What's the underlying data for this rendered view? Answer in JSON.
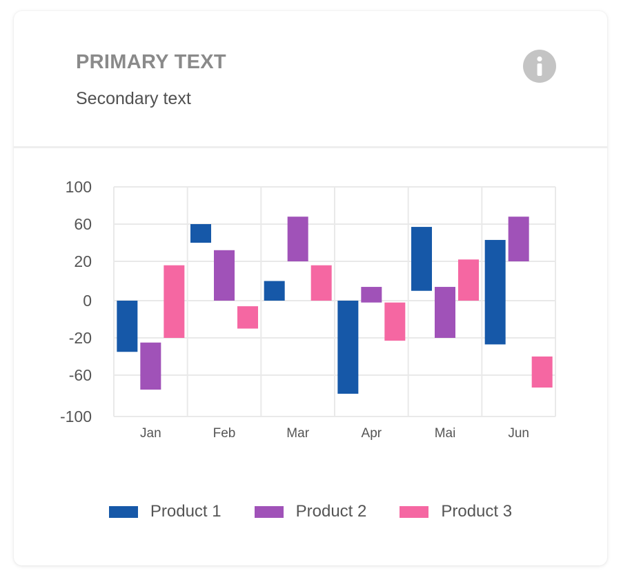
{
  "card": {
    "title": "PRIMARY TEXT",
    "subtitle": "Secondary text",
    "info_icon": "info-icon"
  },
  "chart_data": {
    "type": "bar",
    "subtype": "floating-range",
    "categories": [
      "Jan",
      "Feb",
      "Mar",
      "Apr",
      "Mai",
      "Jun"
    ],
    "y_ticks": [
      "100",
      "60",
      "20",
      "0",
      "-20",
      "-60",
      "-100"
    ],
    "ylim": [
      -100,
      100
    ],
    "grid": true,
    "legend_position": "bottom",
    "series": [
      {
        "name": "Product 1",
        "color": "#1658a8",
        "ranges": [
          [
            0,
            -35
          ],
          [
            40,
            60
          ],
          [
            10,
            0
          ],
          [
            0,
            -78
          ],
          [
            5,
            57
          ],
          [
            -27,
            43
          ]
        ]
      },
      {
        "name": "Product 2",
        "color": "#a052b8",
        "ranges": [
          [
            -25,
            -74
          ],
          [
            32,
            0
          ],
          [
            20,
            68
          ],
          [
            7,
            -1
          ],
          [
            7,
            -20
          ],
          [
            20,
            68
          ]
        ]
      },
      {
        "name": "Product 3",
        "color": "#f567a2",
        "ranges": [
          [
            -20,
            18
          ],
          [
            -3,
            -15
          ],
          [
            0,
            18
          ],
          [
            -1,
            -23
          ],
          [
            22,
            0
          ],
          [
            -40,
            -72
          ]
        ]
      }
    ]
  }
}
